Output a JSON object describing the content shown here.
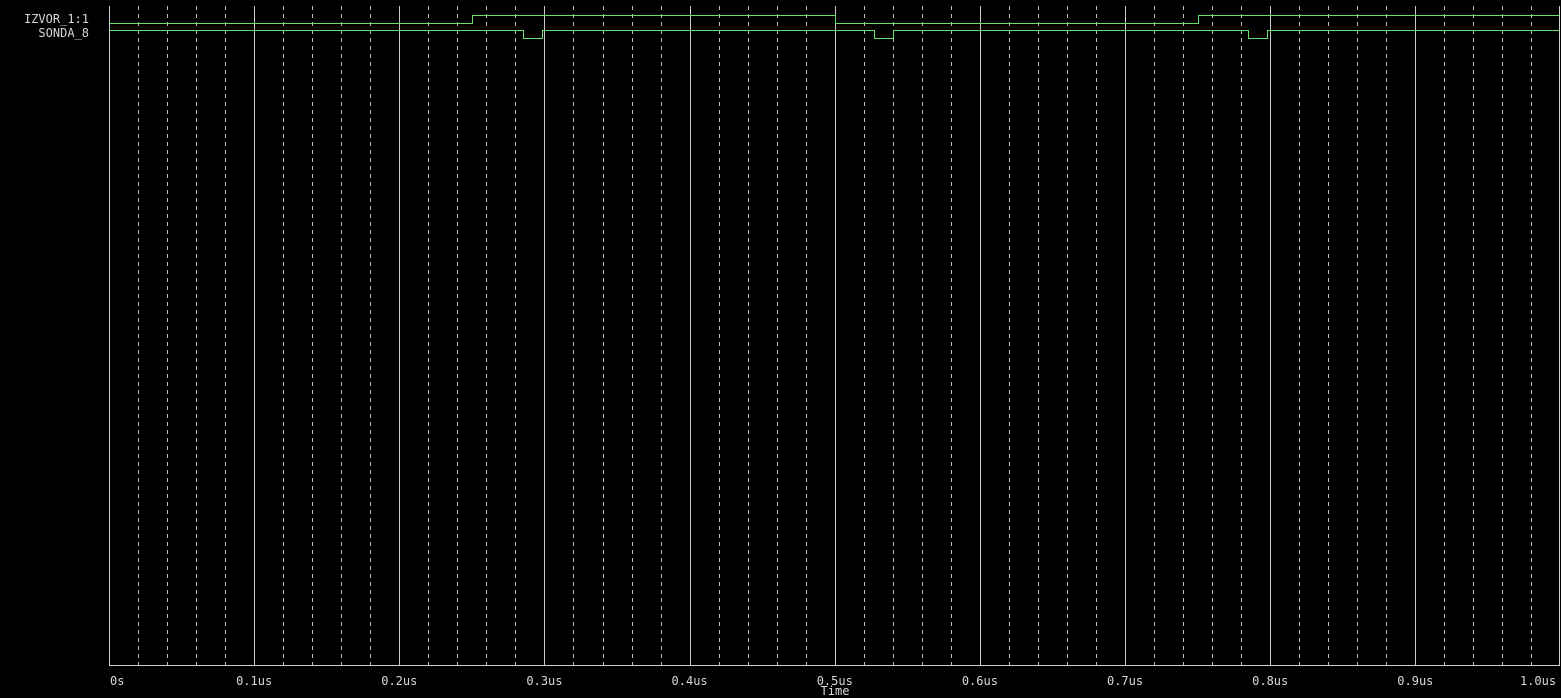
{
  "chart_data": {
    "type": "line",
    "subtype": "digital-waveform",
    "xlabel": "Time",
    "x_unit": "us",
    "xlim": [
      0,
      1.0
    ],
    "x_ticks": [
      {
        "value": 0.0,
        "label": "0s"
      },
      {
        "value": 0.1,
        "label": "0.1us"
      },
      {
        "value": 0.2,
        "label": "0.2us"
      },
      {
        "value": 0.3,
        "label": "0.3us"
      },
      {
        "value": 0.4,
        "label": "0.4us"
      },
      {
        "value": 0.5,
        "label": "0.5us"
      },
      {
        "value": 0.6,
        "label": "0.6us"
      },
      {
        "value": 0.7,
        "label": "0.7us"
      },
      {
        "value": 0.8,
        "label": "0.8us"
      },
      {
        "value": 0.9,
        "label": "0.9us"
      },
      {
        "value": 1.0,
        "label": "1.0us"
      }
    ],
    "minor_grid_step": 0.02,
    "grid": true,
    "series": [
      {
        "name": "IZVOR_1:1",
        "color": "#66dd66",
        "transitions": [
          {
            "t": 0.0,
            "level": 0
          },
          {
            "t": 0.25,
            "level": 1
          },
          {
            "t": 0.5,
            "level": 0
          },
          {
            "t": 0.75,
            "level": 1
          }
        ]
      },
      {
        "name": "SONDA_8",
        "color": "#66dd66",
        "transitions": [
          {
            "t": 0.0,
            "level": 1
          },
          {
            "t": 0.285,
            "level": 0
          },
          {
            "t": 0.298,
            "level": 1
          },
          {
            "t": 0.527,
            "level": 0
          },
          {
            "t": 0.54,
            "level": 1
          },
          {
            "t": 0.785,
            "level": 0
          },
          {
            "t": 0.798,
            "level": 1
          }
        ]
      }
    ]
  },
  "colors": {
    "background": "#000000",
    "grid_major": "#c8c8c8",
    "grid_minor": "#bdbdbd",
    "axis": "#d0d0d0",
    "text": "#d8d8d8",
    "trace": "#66dd66"
  }
}
